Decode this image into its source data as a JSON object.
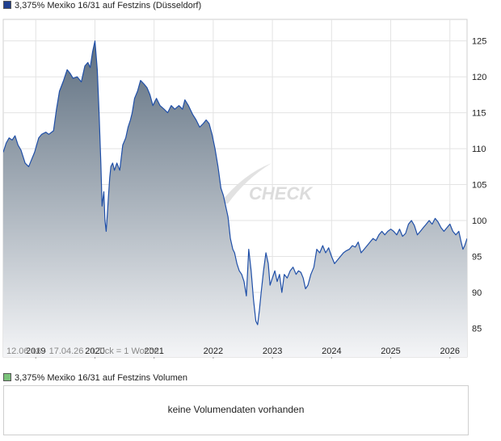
{
  "price_legend": {
    "label": "3,375% Mexiko 16/31 auf Festzins (Düsseldorf)",
    "color": "#1f3f8f"
  },
  "volume_legend": {
    "label": "3,375% Mexiko 16/31 auf Festzins Volumen",
    "color": "#7ac27a"
  },
  "volume_panel": {
    "message": "keine Volumendaten vorhanden"
  },
  "chart_data": {
    "type": "area",
    "title": "",
    "xlabel": "",
    "ylabel": "",
    "date_range_label": "12.06.18 - 17.04.26",
    "tick_note": "1 Tick = 1 Woche",
    "watermark": "CHECK",
    "grid": true,
    "line_color": "#1f4fa8",
    "fill_top_color": "#5e6f80",
    "fill_bottom_color": "#f4f5f7",
    "xlim": [
      2018.45,
      2026.29
    ],
    "ylim": [
      81,
      128
    ],
    "x_ticks": [
      2019,
      2020,
      2021,
      2022,
      2023,
      2024,
      2025,
      2026
    ],
    "x_tick_labels": [
      "2019",
      "2020",
      "2021",
      "2022",
      "2023",
      "2024",
      "2025",
      "2026"
    ],
    "y_ticks": [
      85,
      90,
      95,
      100,
      105,
      110,
      115,
      120,
      125
    ],
    "y_tick_labels": [
      "85",
      "90",
      "95",
      "100",
      "105",
      "110",
      "115",
      "120",
      "125"
    ],
    "series": [
      {
        "x": [
          2018.45,
          2018.5,
          2018.55,
          2018.6,
          2018.65,
          2018.7,
          2018.75,
          2018.82,
          2018.88,
          2018.92,
          2018.98,
          2019.05,
          2019.1,
          2019.17,
          2019.22,
          2019.3,
          2019.35,
          2019.4,
          2019.47,
          2019.53,
          2019.58,
          2019.63,
          2019.7,
          2019.77,
          2019.83,
          2019.88,
          2019.92,
          2019.96,
          2020.0,
          2020.04,
          2020.07,
          2020.1,
          2020.12,
          2020.15,
          2020.17,
          2020.19,
          2020.21,
          2020.23,
          2020.25,
          2020.27,
          2020.3,
          2020.33,
          2020.37,
          2020.42,
          2020.47,
          2020.52,
          2020.56,
          2020.6,
          2020.63,
          2020.67,
          2020.72,
          2020.77,
          2020.83,
          2020.88,
          2020.93,
          2020.98,
          2021.04,
          2021.1,
          2021.17,
          2021.23,
          2021.29,
          2021.35,
          2021.42,
          2021.48,
          2021.52,
          2021.58,
          2021.65,
          2021.71,
          2021.77,
          2021.83,
          2021.88,
          2021.93,
          2021.98,
          2022.03,
          2022.08,
          2022.13,
          2022.17,
          2022.21,
          2022.25,
          2022.29,
          2022.33,
          2022.36,
          2022.4,
          2022.44,
          2022.48,
          2022.52,
          2022.56,
          2022.6,
          2022.64,
          2022.68,
          2022.72,
          2022.75,
          2022.78,
          2022.81,
          2022.85,
          2022.89,
          2022.93,
          2022.96,
          2023.0,
          2023.04,
          2023.08,
          2023.12,
          2023.16,
          2023.2,
          2023.25,
          2023.3,
          2023.35,
          2023.4,
          2023.44,
          2023.48,
          2023.52,
          2023.56,
          2023.6,
          2023.65,
          2023.7,
          2023.75,
          2023.8,
          2023.85,
          2023.9,
          2023.95,
          2024.0,
          2024.05,
          2024.1,
          2024.15,
          2024.2,
          2024.25,
          2024.3,
          2024.35,
          2024.4,
          2024.45,
          2024.5,
          2024.55,
          2024.6,
          2024.65,
          2024.7,
          2024.75,
          2024.8,
          2024.85,
          2024.9,
          2024.95,
          2025.0,
          2025.05,
          2025.1,
          2025.15,
          2025.2,
          2025.25,
          2025.3,
          2025.35,
          2025.4,
          2025.45,
          2025.5,
          2025.55,
          2025.6,
          2025.65,
          2025.7,
          2025.75,
          2025.8,
          2025.85,
          2025.9,
          2025.95,
          2026.0,
          2026.05,
          2026.1,
          2026.15,
          2026.19,
          2026.22,
          2026.25,
          2026.29
        ],
        "y": [
          109.5,
          110.8,
          111.5,
          111.2,
          111.8,
          110.5,
          109.8,
          108.0,
          107.5,
          108.3,
          109.5,
          111.5,
          112.0,
          112.3,
          112.0,
          112.5,
          115.5,
          118.0,
          119.5,
          121.0,
          120.5,
          119.8,
          120.0,
          119.3,
          121.5,
          122.0,
          121.3,
          123.5,
          125.0,
          121.0,
          115.0,
          108.0,
          102.0,
          104.0,
          100.0,
          98.5,
          101.0,
          103.5,
          106.0,
          107.5,
          108.0,
          107.0,
          108.0,
          107.0,
          110.5,
          111.5,
          113.0,
          114.0,
          115.0,
          117.0,
          118.0,
          119.5,
          119.0,
          118.5,
          117.5,
          116.0,
          117.0,
          116.0,
          115.5,
          115.0,
          116.0,
          115.5,
          116.0,
          115.5,
          116.8,
          116.0,
          114.8,
          114.0,
          113.0,
          113.5,
          114.0,
          113.5,
          112.0,
          110.0,
          107.5,
          104.5,
          103.5,
          102.0,
          100.5,
          97.5,
          96.0,
          95.5,
          94.0,
          93.0,
          92.5,
          91.5,
          89.5,
          96.0,
          93.0,
          89.0,
          86.0,
          85.5,
          87.5,
          90.0,
          93.0,
          95.5,
          94.0,
          91.0,
          92.0,
          93.0,
          91.5,
          92.5,
          90.0,
          92.5,
          92.0,
          93.0,
          93.5,
          92.5,
          93.0,
          92.8,
          92.0,
          90.5,
          91.0,
          92.5,
          93.5,
          96.0,
          95.5,
          96.5,
          95.5,
          96.2,
          95.0,
          94.0,
          94.5,
          95.0,
          95.5,
          95.8,
          96.0,
          96.5,
          96.3,
          97.0,
          95.5,
          96.0,
          96.5,
          97.0,
          97.5,
          97.2,
          98.0,
          98.5,
          98.0,
          98.5,
          98.8,
          98.5,
          98.0,
          98.8,
          97.8,
          98.2,
          99.5,
          100.0,
          99.3,
          98.0,
          98.5,
          99.0,
          99.5,
          100.0,
          99.5,
          100.3,
          99.8,
          99.0,
          98.5,
          99.0,
          99.5,
          98.5,
          98.0,
          98.5,
          97.0,
          96.0,
          96.5,
          97.5
        ]
      }
    ]
  }
}
